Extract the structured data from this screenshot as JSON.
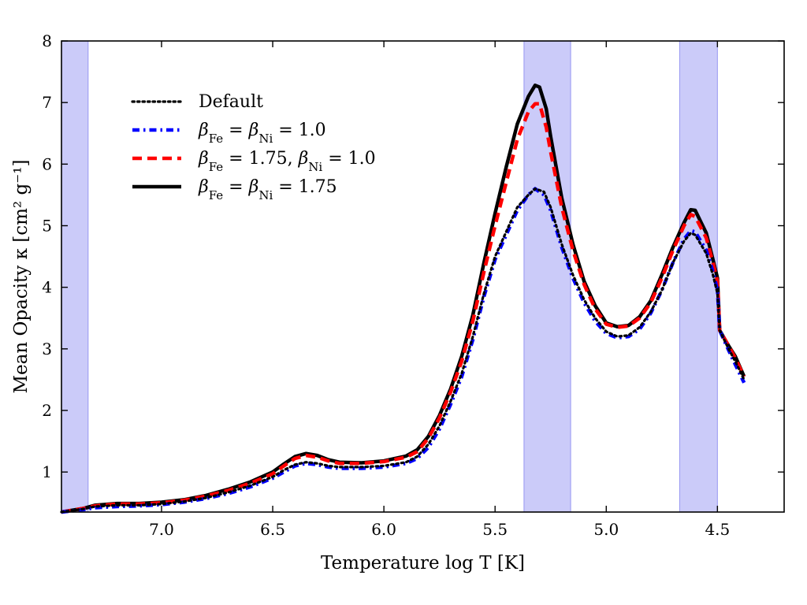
{
  "chart_data": {
    "type": "line",
    "xlabel": "Temperature log T [K]",
    "ylabel": "Mean Opacity κ [cm² g⁻¹]",
    "xlim": [
      7.45,
      4.2
    ],
    "ylim": [
      0.35,
      8
    ],
    "x_axis_inverted": true,
    "x_ticks": [
      "7.0",
      "6.5",
      "6.0",
      "5.5",
      "5.0",
      "4.5"
    ],
    "y_ticks": [
      "1",
      "2",
      "3",
      "4",
      "5",
      "6",
      "7",
      "8"
    ],
    "grid": false,
    "legend_position": "upper-left",
    "shaded_bands": [
      {
        "x_from": 7.45,
        "x_to": 7.33
      },
      {
        "x_from": 5.37,
        "x_to": 5.16
      },
      {
        "x_from": 4.67,
        "x_to": 4.5
      }
    ],
    "band_color": "#7777ee",
    "series": [
      {
        "name": "Default",
        "legend": [
          "Default"
        ],
        "color": "#000000",
        "style": "dotted",
        "points": [
          [
            7.45,
            0.35
          ],
          [
            7.35,
            0.4
          ],
          [
            7.3,
            0.44
          ],
          [
            7.2,
            0.46
          ],
          [
            7.1,
            0.46
          ],
          [
            7.0,
            0.48
          ],
          [
            6.9,
            0.52
          ],
          [
            6.8,
            0.58
          ],
          [
            6.7,
            0.67
          ],
          [
            6.6,
            0.78
          ],
          [
            6.5,
            0.92
          ],
          [
            6.45,
            1.03
          ],
          [
            6.4,
            1.12
          ],
          [
            6.35,
            1.16
          ],
          [
            6.3,
            1.14
          ],
          [
            6.25,
            1.1
          ],
          [
            6.2,
            1.08
          ],
          [
            6.1,
            1.08
          ],
          [
            6.0,
            1.1
          ],
          [
            5.9,
            1.16
          ],
          [
            5.85,
            1.25
          ],
          [
            5.8,
            1.45
          ],
          [
            5.75,
            1.75
          ],
          [
            5.7,
            2.15
          ],
          [
            5.65,
            2.6
          ],
          [
            5.6,
            3.2
          ],
          [
            5.55,
            3.9
          ],
          [
            5.5,
            4.5
          ],
          [
            5.45,
            4.9
          ],
          [
            5.4,
            5.3
          ],
          [
            5.35,
            5.5
          ],
          [
            5.32,
            5.6
          ],
          [
            5.28,
            5.55
          ],
          [
            5.25,
            5.3
          ],
          [
            5.2,
            4.7
          ],
          [
            5.15,
            4.2
          ],
          [
            5.1,
            3.8
          ],
          [
            5.05,
            3.5
          ],
          [
            5.0,
            3.28
          ],
          [
            4.95,
            3.2
          ],
          [
            4.9,
            3.22
          ],
          [
            4.85,
            3.35
          ],
          [
            4.8,
            3.6
          ],
          [
            4.75,
            3.95
          ],
          [
            4.7,
            4.4
          ],
          [
            4.65,
            4.75
          ],
          [
            4.62,
            4.88
          ],
          [
            4.6,
            4.85
          ],
          [
            4.55,
            4.55
          ],
          [
            4.52,
            4.2
          ],
          [
            4.5,
            3.9
          ],
          [
            4.49,
            3.3
          ],
          [
            4.45,
            3.0
          ],
          [
            4.42,
            2.8
          ],
          [
            4.38,
            2.5
          ]
        ]
      },
      {
        "name": "βFe = βNi = 1.0",
        "legend": [
          "β",
          "Fe",
          " = β",
          "Ni",
          " = 1.0"
        ],
        "color": "#0000ff",
        "style": "dashdot",
        "points": [
          [
            7.45,
            0.35
          ],
          [
            7.35,
            0.39
          ],
          [
            7.3,
            0.42
          ],
          [
            7.2,
            0.44
          ],
          [
            7.1,
            0.45
          ],
          [
            7.0,
            0.47
          ],
          [
            6.9,
            0.51
          ],
          [
            6.8,
            0.57
          ],
          [
            6.7,
            0.65
          ],
          [
            6.6,
            0.76
          ],
          [
            6.5,
            0.9
          ],
          [
            6.45,
            1.0
          ],
          [
            6.4,
            1.1
          ],
          [
            6.35,
            1.14
          ],
          [
            6.3,
            1.12
          ],
          [
            6.25,
            1.08
          ],
          [
            6.2,
            1.06
          ],
          [
            6.1,
            1.06
          ],
          [
            6.0,
            1.08
          ],
          [
            5.9,
            1.14
          ],
          [
            5.85,
            1.22
          ],
          [
            5.8,
            1.4
          ],
          [
            5.75,
            1.7
          ],
          [
            5.7,
            2.1
          ],
          [
            5.65,
            2.55
          ],
          [
            5.6,
            3.15
          ],
          [
            5.55,
            3.85
          ],
          [
            5.5,
            4.45
          ],
          [
            5.45,
            4.85
          ],
          [
            5.4,
            5.25
          ],
          [
            5.35,
            5.5
          ],
          [
            5.32,
            5.6
          ],
          [
            5.28,
            5.5
          ],
          [
            5.25,
            5.25
          ],
          [
            5.2,
            4.65
          ],
          [
            5.15,
            4.15
          ],
          [
            5.1,
            3.75
          ],
          [
            5.05,
            3.45
          ],
          [
            5.0,
            3.25
          ],
          [
            4.95,
            3.18
          ],
          [
            4.9,
            3.2
          ],
          [
            4.85,
            3.32
          ],
          [
            4.8,
            3.58
          ],
          [
            4.75,
            3.95
          ],
          [
            4.7,
            4.4
          ],
          [
            4.65,
            4.78
          ],
          [
            4.62,
            4.92
          ],
          [
            4.6,
            4.9
          ],
          [
            4.55,
            4.6
          ],
          [
            4.52,
            4.25
          ],
          [
            4.5,
            3.95
          ],
          [
            4.49,
            3.3
          ],
          [
            4.45,
            2.98
          ],
          [
            4.42,
            2.75
          ],
          [
            4.38,
            2.45
          ]
        ]
      },
      {
        "name": "βFe = 1.75, βNi = 1.0",
        "legend": [
          "β",
          "Fe",
          " = 1.75, β",
          "Ni",
          " = 1.0"
        ],
        "color": "#ff0000",
        "style": "dashed",
        "points": [
          [
            7.45,
            0.35
          ],
          [
            7.35,
            0.41
          ],
          [
            7.3,
            0.45
          ],
          [
            7.2,
            0.48
          ],
          [
            7.1,
            0.48
          ],
          [
            7.0,
            0.5
          ],
          [
            6.9,
            0.54
          ],
          [
            6.8,
            0.61
          ],
          [
            6.7,
            0.7
          ],
          [
            6.6,
            0.82
          ],
          [
            6.5,
            0.97
          ],
          [
            6.45,
            1.1
          ],
          [
            6.4,
            1.22
          ],
          [
            6.35,
            1.27
          ],
          [
            6.3,
            1.24
          ],
          [
            6.25,
            1.18
          ],
          [
            6.2,
            1.14
          ],
          [
            6.1,
            1.14
          ],
          [
            6.0,
            1.17
          ],
          [
            5.9,
            1.24
          ],
          [
            5.85,
            1.33
          ],
          [
            5.8,
            1.55
          ],
          [
            5.75,
            1.88
          ],
          [
            5.7,
            2.3
          ],
          [
            5.65,
            2.8
          ],
          [
            5.6,
            3.45
          ],
          [
            5.55,
            4.25
          ],
          [
            5.5,
            5.0
          ],
          [
            5.45,
            5.7
          ],
          [
            5.4,
            6.4
          ],
          [
            5.35,
            6.85
          ],
          [
            5.32,
            6.98
          ],
          [
            5.3,
            6.98
          ],
          [
            5.27,
            6.6
          ],
          [
            5.25,
            6.2
          ],
          [
            5.2,
            5.3
          ],
          [
            5.15,
            4.6
          ],
          [
            5.1,
            4.05
          ],
          [
            5.05,
            3.65
          ],
          [
            5.0,
            3.4
          ],
          [
            4.95,
            3.35
          ],
          [
            4.9,
            3.37
          ],
          [
            4.85,
            3.5
          ],
          [
            4.8,
            3.75
          ],
          [
            4.75,
            4.15
          ],
          [
            4.7,
            4.6
          ],
          [
            4.65,
            5.0
          ],
          [
            4.62,
            5.18
          ],
          [
            4.6,
            5.15
          ],
          [
            4.55,
            4.8
          ],
          [
            4.52,
            4.4
          ],
          [
            4.5,
            4.1
          ],
          [
            4.49,
            3.3
          ],
          [
            4.45,
            3.05
          ],
          [
            4.42,
            2.85
          ],
          [
            4.38,
            2.55
          ]
        ]
      },
      {
        "name": "βFe = βNi = 1.75",
        "legend": [
          "β",
          "Fe",
          " = β",
          "Ni",
          " = 1.75"
        ],
        "color": "#000000",
        "style": "solid",
        "points": [
          [
            7.45,
            0.35
          ],
          [
            7.35,
            0.41
          ],
          [
            7.3,
            0.46
          ],
          [
            7.2,
            0.49
          ],
          [
            7.1,
            0.49
          ],
          [
            7.0,
            0.51
          ],
          [
            6.9,
            0.55
          ],
          [
            6.8,
            0.62
          ],
          [
            6.7,
            0.72
          ],
          [
            6.6,
            0.84
          ],
          [
            6.5,
            1.0
          ],
          [
            6.45,
            1.13
          ],
          [
            6.4,
            1.25
          ],
          [
            6.35,
            1.3
          ],
          [
            6.3,
            1.27
          ],
          [
            6.25,
            1.2
          ],
          [
            6.2,
            1.16
          ],
          [
            6.1,
            1.15
          ],
          [
            6.0,
            1.18
          ],
          [
            5.9,
            1.26
          ],
          [
            5.85,
            1.36
          ],
          [
            5.8,
            1.58
          ],
          [
            5.75,
            1.92
          ],
          [
            5.7,
            2.35
          ],
          [
            5.65,
            2.88
          ],
          [
            5.6,
            3.55
          ],
          [
            5.55,
            4.4
          ],
          [
            5.5,
            5.2
          ],
          [
            5.45,
            5.95
          ],
          [
            5.4,
            6.65
          ],
          [
            5.35,
            7.1
          ],
          [
            5.32,
            7.28
          ],
          [
            5.3,
            7.25
          ],
          [
            5.27,
            6.9
          ],
          [
            5.25,
            6.45
          ],
          [
            5.2,
            5.45
          ],
          [
            5.15,
            4.7
          ],
          [
            5.1,
            4.1
          ],
          [
            5.05,
            3.7
          ],
          [
            5.0,
            3.42
          ],
          [
            4.95,
            3.36
          ],
          [
            4.9,
            3.38
          ],
          [
            4.85,
            3.52
          ],
          [
            4.8,
            3.78
          ],
          [
            4.75,
            4.2
          ],
          [
            4.7,
            4.65
          ],
          [
            4.65,
            5.05
          ],
          [
            4.62,
            5.26
          ],
          [
            4.6,
            5.25
          ],
          [
            4.55,
            4.88
          ],
          [
            4.52,
            4.45
          ],
          [
            4.5,
            4.15
          ],
          [
            4.49,
            3.3
          ],
          [
            4.45,
            3.05
          ],
          [
            4.42,
            2.88
          ],
          [
            4.38,
            2.55
          ]
        ]
      }
    ]
  }
}
